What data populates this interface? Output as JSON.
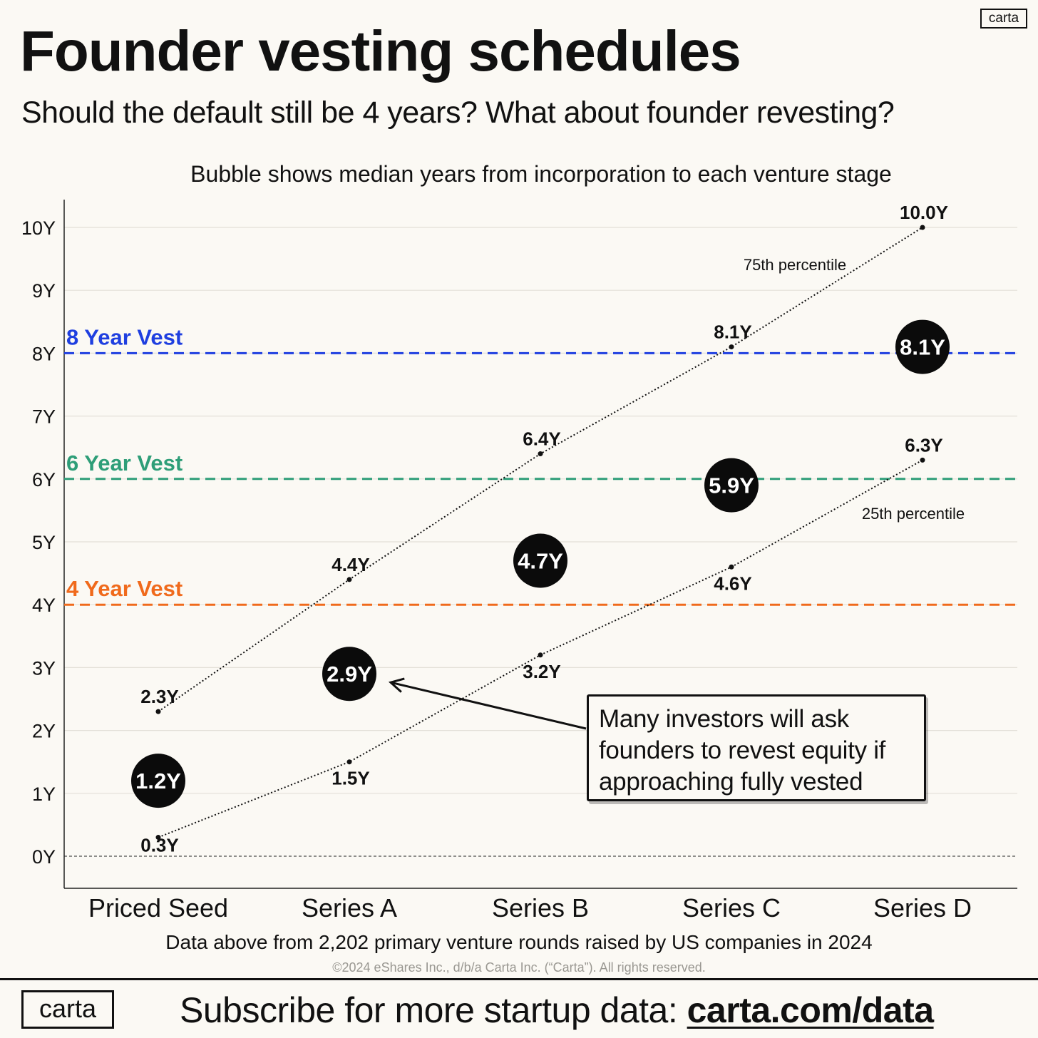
{
  "brand": {
    "logo_text": "carta"
  },
  "header": {
    "title": "Founder vesting schedules",
    "subtitle": "Should the default still be 4 years? What about founder revesting?"
  },
  "chart_data": {
    "type": "scatter",
    "title": "Bubble shows median years from incorporation to each venture stage",
    "categories": [
      "Priced Seed",
      "Series A",
      "Series B",
      "Series C",
      "Series D"
    ],
    "yticks": [
      "0Y",
      "1Y",
      "2Y",
      "3Y",
      "4Y",
      "5Y",
      "6Y",
      "7Y",
      "8Y",
      "9Y",
      "10Y"
    ],
    "ylim": [
      0,
      10
    ],
    "median": {
      "values": [
        1.2,
        2.9,
        4.7,
        5.9,
        8.1
      ],
      "labels": [
        "1.2Y",
        "2.9Y",
        "4.7Y",
        "5.9Y",
        "8.1Y"
      ]
    },
    "p75": {
      "name": "75th percentile",
      "values": [
        2.3,
        4.4,
        6.4,
        8.1,
        10.0
      ],
      "labels": [
        "2.3Y",
        "4.4Y",
        "6.4Y",
        "8.1Y",
        "10.0Y"
      ]
    },
    "p25": {
      "name": "25th percentile",
      "values": [
        0.3,
        1.5,
        3.2,
        4.6,
        6.3
      ],
      "labels": [
        "0.3Y",
        "1.5Y",
        "3.2Y",
        "4.6Y",
        "6.3Y"
      ]
    },
    "reference_lines": [
      {
        "label": "8 Year Vest",
        "value": 8,
        "color": "#1f3fe0"
      },
      {
        "label": "6 Year Vest",
        "value": 6,
        "color": "#2e9e78"
      },
      {
        "label": "4 Year Vest",
        "value": 4,
        "color": "#f06a1c"
      }
    ],
    "annotation": "Many investors will ask founders to revest equity if approaching fully vested"
  },
  "footnote": {
    "source": "Data above from 2,202 primary venture rounds raised by US companies in 2024",
    "copyright": "©2024 eShares Inc., d/b/a Carta Inc. (“Carta”). All rights reserved."
  },
  "footer": {
    "cta_prefix": "Subscribe for more startup data: ",
    "cta_link": "carta.com/data"
  }
}
